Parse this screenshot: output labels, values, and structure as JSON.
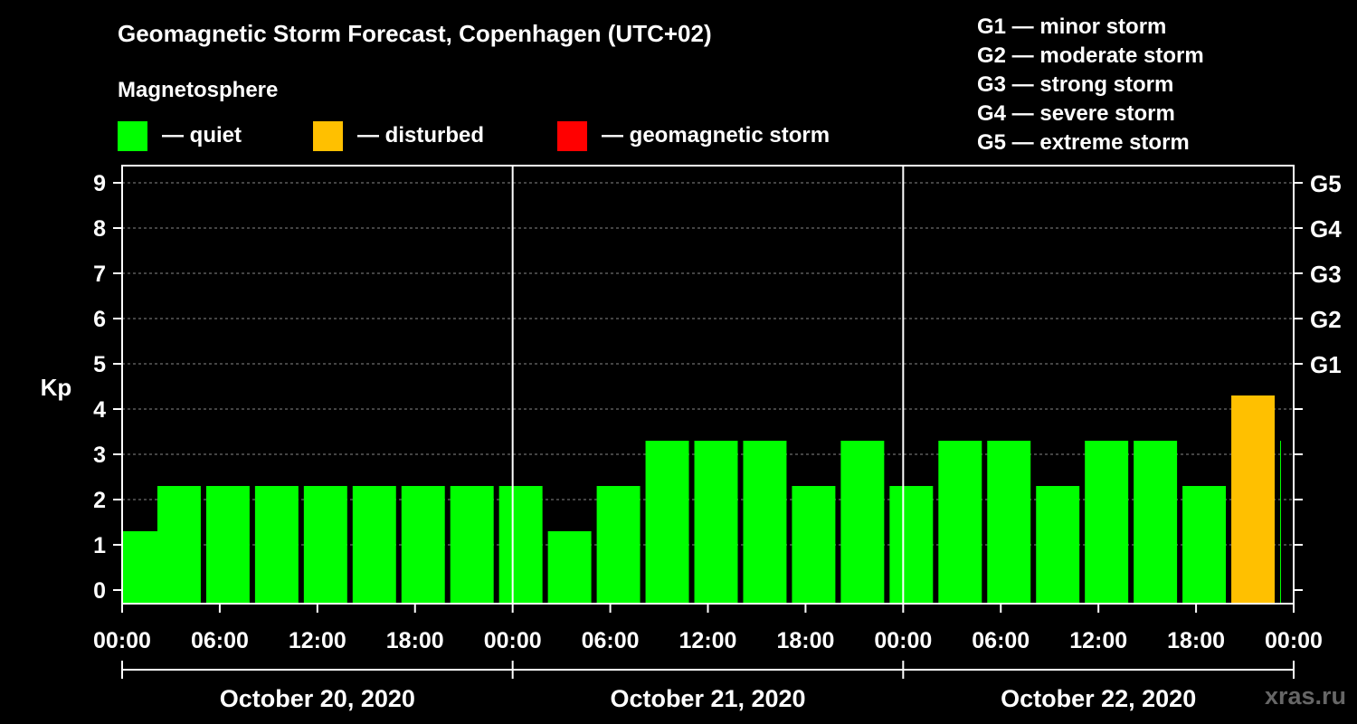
{
  "title": "Geomagnetic Storm Forecast, Copenhagen (UTC+02)",
  "subtitle": "Magnetosphere",
  "legend": [
    {
      "color": "#00ff00",
      "label": "— quiet"
    },
    {
      "color": "#ffc000",
      "label": "— disturbed"
    },
    {
      "color": "#ff0000",
      "label": "— geomagnetic storm"
    }
  ],
  "storm_scale": [
    "G1 — minor storm",
    "G2 — moderate storm",
    "G3 — strong storm",
    "G4 — severe storm",
    "G5 — extreme storm"
  ],
  "watermark": "xras.ru",
  "chart_data": {
    "type": "bar",
    "ylabel": "Kp",
    "ylim": [
      0,
      9
    ],
    "yticks": [
      "0",
      "1",
      "2",
      "3",
      "4",
      "5",
      "6",
      "7",
      "8",
      "9"
    ],
    "right_axis_labels": [
      {
        "kp": 5,
        "label": "G1"
      },
      {
        "kp": 6,
        "label": "G2"
      },
      {
        "kp": 7,
        "label": "G3"
      },
      {
        "kp": 8,
        "label": "G4"
      },
      {
        "kp": 9,
        "label": "G5"
      }
    ],
    "xtick_labels": [
      "00:00",
      "06:00",
      "12:00",
      "18:00",
      "00:00",
      "06:00",
      "12:00",
      "18:00",
      "00:00",
      "06:00",
      "12:00",
      "18:00",
      "00:00"
    ],
    "dates": [
      "October 20, 2020",
      "October 21, 2020",
      "October 22, 2020"
    ],
    "grid": true,
    "bars": [
      {
        "start_hour": 0,
        "value": 1,
        "status": "quiet"
      },
      {
        "start_hour": 2,
        "value": 2,
        "status": "quiet"
      },
      {
        "start_hour": 5,
        "value": 2,
        "status": "quiet"
      },
      {
        "start_hour": 8,
        "value": 2,
        "status": "quiet"
      },
      {
        "start_hour": 11,
        "value": 2,
        "status": "quiet"
      },
      {
        "start_hour": 14,
        "value": 2,
        "status": "quiet"
      },
      {
        "start_hour": 17,
        "value": 2,
        "status": "quiet"
      },
      {
        "start_hour": 20,
        "value": 2,
        "status": "quiet"
      },
      {
        "start_hour": 23,
        "value": 2,
        "status": "quiet"
      },
      {
        "start_hour": 26,
        "value": 1,
        "status": "quiet"
      },
      {
        "start_hour": 29,
        "value": 2,
        "status": "quiet"
      },
      {
        "start_hour": 32,
        "value": 3,
        "status": "quiet"
      },
      {
        "start_hour": 35,
        "value": 3,
        "status": "quiet"
      },
      {
        "start_hour": 38,
        "value": 3,
        "status": "quiet"
      },
      {
        "start_hour": 41,
        "value": 2,
        "status": "quiet"
      },
      {
        "start_hour": 44,
        "value": 3,
        "status": "quiet"
      },
      {
        "start_hour": 47,
        "value": 2,
        "status": "quiet"
      },
      {
        "start_hour": 50,
        "value": 3,
        "status": "quiet"
      },
      {
        "start_hour": 53,
        "value": 3,
        "status": "quiet"
      },
      {
        "start_hour": 56,
        "value": 2,
        "status": "quiet"
      },
      {
        "start_hour": 59,
        "value": 3,
        "status": "quiet"
      },
      {
        "start_hour": 62,
        "value": 3,
        "status": "quiet"
      },
      {
        "start_hour": 65,
        "value": 2,
        "status": "quiet"
      },
      {
        "start_hour": 68,
        "value": 4,
        "status": "disturbed"
      },
      {
        "start_hour": 71,
        "value": 3,
        "status": "quiet"
      }
    ],
    "status_colors": {
      "quiet": "#00ff00",
      "disturbed": "#ffc000",
      "storm": "#ff0000"
    }
  }
}
